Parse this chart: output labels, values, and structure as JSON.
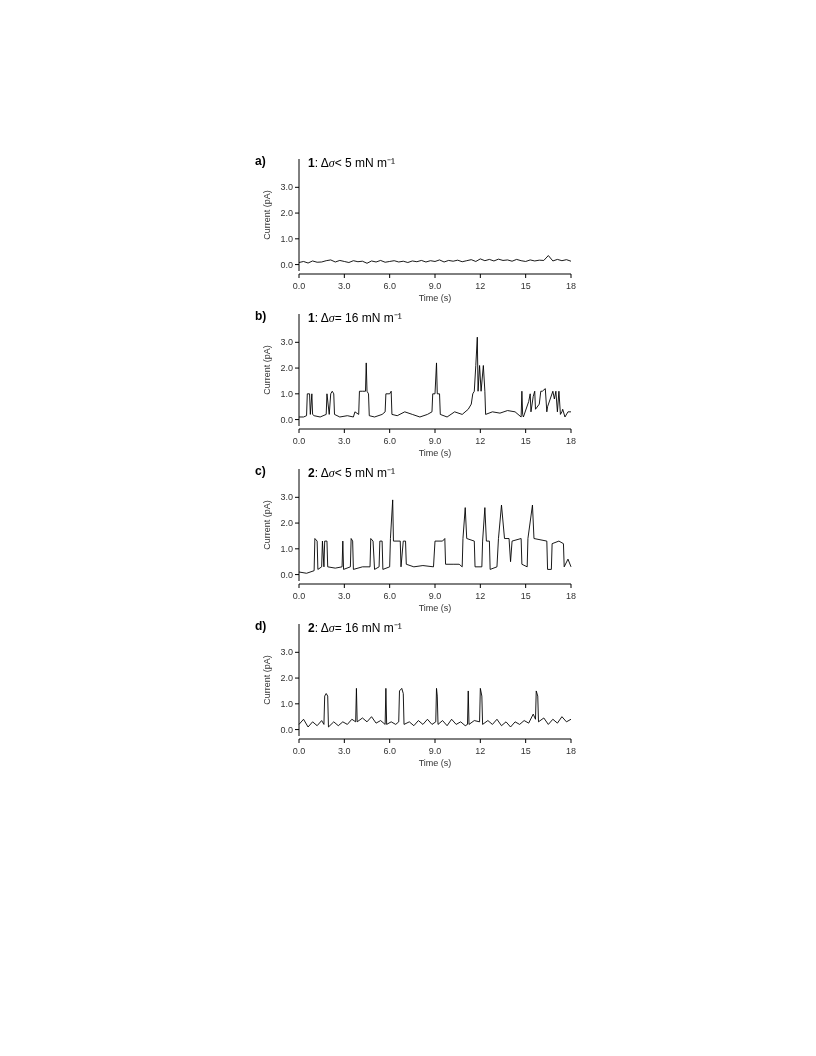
{
  "chart_data": [
    {
      "type": "line",
      "title": "1: Δσ< 5 mN m⁻¹",
      "xlabel": "Time (s)",
      "ylabel": "Current (pA)",
      "annotations": [
        "a)"
      ],
      "xlim": [
        0,
        18
      ],
      "ylim": [
        -0.25,
        4.1
      ],
      "xticks": [
        {
          "value": 0,
          "label": "0.0"
        },
        {
          "value": 3,
          "label": "3.0"
        },
        {
          "value": 6,
          "label": "6.0"
        },
        {
          "value": 9,
          "label": "9.0"
        },
        12,
        15,
        18
      ],
      "yticks": [
        {
          "value": 0,
          "label": "0.0"
        },
        {
          "value": 1,
          "label": "1.0"
        },
        {
          "value": 2,
          "label": "2.0"
        },
        {
          "value": 3,
          "label": "3.0"
        }
      ],
      "line_style": "solid",
      "series": [
        {
          "color": "#000000",
          "x": [
            0,
            0.3,
            0.6,
            0.9,
            1.2,
            1.5,
            1.8,
            2.1,
            2.4,
            2.7,
            3,
            3.3,
            3.6,
            3.9,
            4.2,
            4.5,
            4.8,
            5.1,
            5.4,
            5.7,
            6,
            6.3,
            6.6,
            6.9,
            7.2,
            7.5,
            7.8,
            8.1,
            8.4,
            8.7,
            9,
            9.3,
            9.6,
            9.9,
            10.2,
            10.5,
            10.8,
            11.1,
            11.4,
            11.7,
            12,
            12.3,
            12.6,
            12.9,
            13.2,
            13.5,
            13.8,
            14.1,
            14.4,
            14.7,
            15,
            15.3,
            15.6,
            15.9,
            16.2,
            16.5,
            16.8,
            17.1,
            17.4,
            17.7,
            18
          ],
          "values": [
            0.08,
            0.12,
            0.06,
            0.14,
            0.09,
            0.1,
            0.15,
            0.18,
            0.1,
            0.16,
            0.12,
            0.08,
            0.15,
            0.11,
            0.13,
            0.05,
            0.14,
            0.1,
            0.16,
            0.09,
            0.12,
            0.15,
            0.1,
            0.13,
            0.08,
            0.14,
            0.11,
            0.16,
            0.1,
            0.15,
            0.12,
            0.18,
            0.1,
            0.16,
            0.13,
            0.17,
            0.11,
            0.15,
            0.19,
            0.12,
            0.22,
            0.15,
            0.2,
            0.14,
            0.21,
            0.16,
            0.18,
            0.13,
            0.2,
            0.15,
            0.12,
            0.18,
            0.14,
            0.17,
            0.16,
            0.35,
            0.14,
            0.2,
            0.15,
            0.19,
            0.13
          ]
        }
      ]
    },
    {
      "type": "line",
      "title": "1: Δσ= 16 mN m⁻¹",
      "xlabel": "Time (s)",
      "ylabel": "Current (pA)",
      "annotations": [
        "b)"
      ],
      "xlim": [
        0,
        18
      ],
      "ylim": [
        -0.25,
        4.1
      ],
      "xticks": [
        {
          "value": 0,
          "label": "0.0"
        },
        {
          "value": 3,
          "label": "3.0"
        },
        {
          "value": 6,
          "label": "6.0"
        },
        {
          "value": 9,
          "label": "9.0"
        },
        12,
        15,
        18
      ],
      "yticks": [
        {
          "value": 0,
          "label": "0.0"
        },
        {
          "value": 1,
          "label": "1.0"
        },
        {
          "value": 2,
          "label": "2.0"
        },
        {
          "value": 3,
          "label": "3.0"
        }
      ],
      "line_style": "solid",
      "series": [
        {
          "color": "#000000",
          "x": [
            0,
            0.3,
            0.5,
            0.55,
            0.7,
            0.75,
            0.85,
            0.9,
            1.0,
            1.4,
            1.8,
            1.85,
            2.0,
            2.1,
            2.2,
            2.3,
            2.35,
            2.7,
            3.2,
            3.6,
            3.7,
            3.95,
            4.0,
            4.2,
            4.4,
            4.45,
            4.5,
            4.6,
            4.65,
            5.0,
            5.5,
            5.7,
            5.75,
            6.0,
            6.1,
            6.15,
            6.5,
            7.0,
            7.5,
            8.0,
            8.5,
            8.8,
            8.85,
            9.0,
            9.1,
            9.15,
            9.3,
            9.35,
            9.8,
            10.3,
            10.8,
            11.2,
            11.4,
            11.5,
            11.6,
            11.7,
            11.8,
            11.85,
            11.95,
            12.05,
            12.2,
            12.3,
            12.35,
            12.8,
            13.3,
            13.8,
            14.3,
            14.7,
            14.75,
            14.8,
            14.85,
            15.2,
            15.3,
            15.35,
            15.5,
            15.6,
            15.65,
            15.9,
            16.0,
            16.1,
            16.3,
            16.4,
            16.45,
            16.8,
            16.9,
            17.0,
            17.1,
            17.2,
            17.3,
            17.4,
            17.45,
            17.6,
            17.8,
            18
          ],
          "values": [
            0.1,
            0.1,
            0.15,
            1.0,
            1.0,
            0.2,
            1.0,
            0.2,
            0.15,
            0.1,
            0.2,
            1.0,
            0.2,
            1.0,
            1.1,
            1.0,
            0.2,
            0.1,
            0.15,
            0.1,
            0.3,
            0.2,
            1.1,
            1.1,
            1.1,
            2.2,
            1.1,
            1.0,
            0.15,
            0.1,
            0.2,
            0.3,
            1.0,
            1.0,
            1.1,
            0.2,
            0.15,
            0.3,
            0.2,
            0.1,
            0.2,
            0.3,
            1.0,
            1.0,
            2.2,
            1.0,
            1.0,
            0.2,
            0.1,
            0.3,
            0.2,
            0.4,
            0.6,
            1.0,
            1.1,
            2.1,
            3.2,
            1.1,
            2.1,
            1.1,
            2.1,
            1.1,
            0.2,
            0.3,
            0.25,
            0.35,
            0.3,
            0.1,
            1.1,
            0.2,
            0.1,
            0.7,
            1.0,
            0.3,
            0.9,
            1.1,
            0.4,
            0.6,
            1.1,
            1.1,
            1.2,
            0.3,
            0.5,
            1.1,
            0.8,
            1.1,
            0.3,
            1.1,
            0.2,
            0.3,
            0.4,
            0.1,
            0.3,
            0.3
          ]
        }
      ]
    },
    {
      "type": "line",
      "title": "2: Δσ< 5 mN m⁻¹",
      "xlabel": "Time (s)",
      "ylabel": "Current (pA)",
      "annotations": [
        "c)"
      ],
      "xlim": [
        0,
        18
      ],
      "ylim": [
        -0.25,
        4.1
      ],
      "xticks": [
        {
          "value": 0,
          "label": "0.0"
        },
        {
          "value": 3,
          "label": "3.0"
        },
        {
          "value": 6,
          "label": "6.0"
        },
        {
          "value": 9,
          "label": "9.0"
        },
        12,
        15,
        18
      ],
      "yticks": [
        {
          "value": 0,
          "label": "0.0"
        },
        {
          "value": 1,
          "label": "1.0"
        },
        {
          "value": 2,
          "label": "2.0"
        },
        {
          "value": 3,
          "label": "3.0"
        }
      ],
      "line_style": "solid",
      "series": [
        {
          "color": "#000000",
          "x": [
            0,
            0.5,
            1.0,
            1.05,
            1.2,
            1.25,
            1.5,
            1.55,
            1.65,
            1.7,
            1.85,
            1.9,
            2.4,
            2.85,
            2.9,
            2.95,
            3.4,
            3.45,
            3.55,
            3.6,
            4.2,
            4.7,
            4.75,
            4.9,
            5.0,
            5.3,
            5.35,
            5.5,
            5.55,
            6.0,
            6.05,
            6.2,
            6.25,
            6.7,
            6.75,
            6.9,
            7.05,
            7.1,
            7.6,
            8.2,
            8.9,
            9.0,
            9.5,
            9.65,
            9.7,
            10.2,
            10.6,
            10.8,
            10.85,
            11.0,
            11.1,
            11.6,
            11.65,
            12.1,
            12.15,
            12.3,
            12.4,
            12.6,
            12.65,
            13.1,
            13.2,
            13.4,
            13.6,
            13.9,
            14.0,
            14.1,
            14.7,
            14.75,
            15.1,
            15.15,
            15.45,
            15.55,
            16.4,
            16.45,
            16.7,
            16.75,
            17.2,
            17.5,
            17.55,
            17.8,
            18
          ],
          "values": [
            0.1,
            0.05,
            0.15,
            1.4,
            1.3,
            0.2,
            0.3,
            1.3,
            0.3,
            1.3,
            1.3,
            0.3,
            0.25,
            0.3,
            1.3,
            0.2,
            0.3,
            1.4,
            1.3,
            0.2,
            0.3,
            0.3,
            1.4,
            1.3,
            0.2,
            0.3,
            1.3,
            1.3,
            0.2,
            0.3,
            1.4,
            2.9,
            1.3,
            1.3,
            0.3,
            1.3,
            1.3,
            0.4,
            0.3,
            0.35,
            0.3,
            1.3,
            1.3,
            1.4,
            0.4,
            0.4,
            0.4,
            0.3,
            1.4,
            2.6,
            1.4,
            1.3,
            0.3,
            0.3,
            1.3,
            2.6,
            1.3,
            1.3,
            0.2,
            0.3,
            1.4,
            2.7,
            1.4,
            1.4,
            0.5,
            1.3,
            1.4,
            0.4,
            0.3,
            1.4,
            2.7,
            1.4,
            1.3,
            0.2,
            0.2,
            1.2,
            1.3,
            1.2,
            0.3,
            0.6,
            0.3
          ]
        }
      ]
    },
    {
      "type": "line",
      "title": "2: Δσ= 16 mN m⁻¹",
      "xlabel": "Time (s)",
      "ylabel": "Current (pA)",
      "annotations": [
        "d)"
      ],
      "xlim": [
        0,
        18
      ],
      "ylim": [
        -0.25,
        4.1
      ],
      "xticks": [
        {
          "value": 0,
          "label": "0.0"
        },
        {
          "value": 3,
          "label": "3.0"
        },
        {
          "value": 6,
          "label": "6.0"
        },
        {
          "value": 9,
          "label": "9.0"
        },
        12,
        15,
        18
      ],
      "yticks": [
        {
          "value": 0,
          "label": "0.0"
        },
        {
          "value": 1,
          "label": "1.0"
        },
        {
          "value": 2,
          "label": "2.0"
        },
        {
          "value": 3,
          "label": "3.0"
        }
      ],
      "line_style": "solid",
      "series": [
        {
          "color": "#000000",
          "x": [
            0,
            0.3,
            0.6,
            0.9,
            1.2,
            1.5,
            1.65,
            1.7,
            1.8,
            1.9,
            1.95,
            2.3,
            2.6,
            2.9,
            3.2,
            3.5,
            3.75,
            3.8,
            3.85,
            4.2,
            4.5,
            4.8,
            5.1,
            5.4,
            5.7,
            5.75,
            5.8,
            6.1,
            6.4,
            6.6,
            6.65,
            6.8,
            6.9,
            6.95,
            7.3,
            7.6,
            7.9,
            8.2,
            8.5,
            8.8,
            9.05,
            9.1,
            9.15,
            9.2,
            9.5,
            9.8,
            10.1,
            10.4,
            10.7,
            11.0,
            11.15,
            11.2,
            11.25,
            11.6,
            11.95,
            12.0,
            12.1,
            12.15,
            12.5,
            12.8,
            13.1,
            13.4,
            13.7,
            14.0,
            14.3,
            14.6,
            14.9,
            15.2,
            15.5,
            15.65,
            15.7,
            15.8,
            15.85,
            16.2,
            16.5,
            16.8,
            17.1,
            17.4,
            17.7,
            18
          ],
          "values": [
            0.2,
            0.4,
            0.1,
            0.3,
            0.15,
            0.35,
            0.2,
            1.3,
            1.4,
            1.3,
            0.1,
            0.3,
            0.15,
            0.3,
            0.2,
            0.4,
            0.3,
            1.6,
            0.3,
            0.45,
            0.3,
            0.5,
            0.25,
            0.35,
            0.2,
            1.6,
            0.2,
            0.3,
            0.2,
            0.3,
            1.5,
            1.6,
            1.4,
            0.2,
            0.3,
            0.15,
            0.35,
            0.2,
            0.4,
            0.2,
            0.3,
            1.6,
            1.3,
            0.2,
            0.35,
            0.15,
            0.4,
            0.2,
            0.3,
            0.15,
            0.2,
            1.5,
            0.2,
            0.35,
            0.3,
            1.6,
            1.3,
            0.2,
            0.35,
            0.2,
            0.4,
            0.15,
            0.3,
            0.1,
            0.3,
            0.2,
            0.35,
            0.25,
            0.6,
            0.4,
            1.5,
            1.3,
            0.3,
            0.45,
            0.2,
            0.4,
            0.25,
            0.5,
            0.3,
            0.4
          ]
        }
      ]
    }
  ]
}
